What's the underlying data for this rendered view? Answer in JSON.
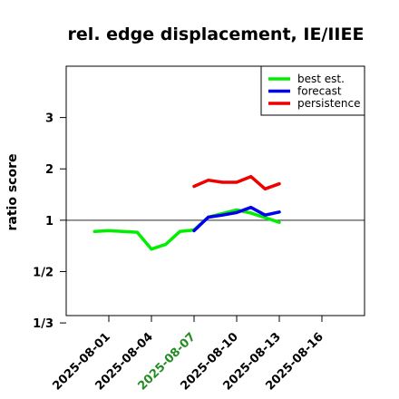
{
  "chart_data": {
    "type": "line",
    "title": "rel. edge displacement, IE/IIEE",
    "xlabel": "",
    "ylabel": "ratio score",
    "y_scale": "reciprocal",
    "xlim": [
      "2025-07-29",
      "2025-08-19"
    ],
    "ylim": [
      0.35,
      4.0
    ],
    "x_ticks": [
      {
        "label": "2025-08-01",
        "color": "#000000"
      },
      {
        "label": "2025-08-04",
        "color": "#000000"
      },
      {
        "label": "2025-08-07",
        "color": "#228b22"
      },
      {
        "label": "2025-08-10",
        "color": "#000000"
      },
      {
        "label": "2025-08-13",
        "color": "#000000"
      },
      {
        "label": "2025-08-16",
        "color": "#000000"
      }
    ],
    "y_ticks": [
      {
        "label": "3",
        "value": 3
      },
      {
        "label": "2",
        "value": 2
      },
      {
        "label": "1",
        "value": 1
      },
      {
        "label": "1/2",
        "value": 0.5
      },
      {
        "label": "1/3",
        "value": 0.3333
      }
    ],
    "reference_line": 1,
    "legend": {
      "position": "top-right"
    },
    "series": [
      {
        "name": "best est.",
        "color": "#00ee00",
        "points": [
          [
            "2025-07-31",
            0.82
          ],
          [
            "2025-08-01",
            0.83
          ],
          [
            "2025-08-02",
            0.82
          ],
          [
            "2025-08-03",
            0.81
          ],
          [
            "2025-08-04",
            0.64
          ],
          [
            "2025-08-05",
            0.68
          ],
          [
            "2025-08-06",
            0.82
          ],
          [
            "2025-08-07",
            0.84
          ],
          [
            "2025-08-08",
            1.06
          ],
          [
            "2025-08-09",
            1.13
          ],
          [
            "2025-08-10",
            1.2
          ],
          [
            "2025-08-11",
            1.14
          ],
          [
            "2025-08-12",
            1.05
          ],
          [
            "2025-08-13",
            0.96
          ]
        ]
      },
      {
        "name": "forecast",
        "color": "#0000ee",
        "points": [
          [
            "2025-08-07",
            0.83
          ],
          [
            "2025-08-08",
            1.06
          ],
          [
            "2025-08-09",
            1.1
          ],
          [
            "2025-08-10",
            1.15
          ],
          [
            "2025-08-11",
            1.25
          ],
          [
            "2025-08-12",
            1.1
          ],
          [
            "2025-08-13",
            1.16
          ]
        ]
      },
      {
        "name": "persistence",
        "color": "#ee0000",
        "points": [
          [
            "2025-08-07",
            1.66
          ],
          [
            "2025-08-08",
            1.78
          ],
          [
            "2025-08-09",
            1.74
          ],
          [
            "2025-08-10",
            1.74
          ],
          [
            "2025-08-11",
            1.85
          ],
          [
            "2025-08-12",
            1.61
          ],
          [
            "2025-08-13",
            1.71
          ]
        ]
      }
    ]
  }
}
